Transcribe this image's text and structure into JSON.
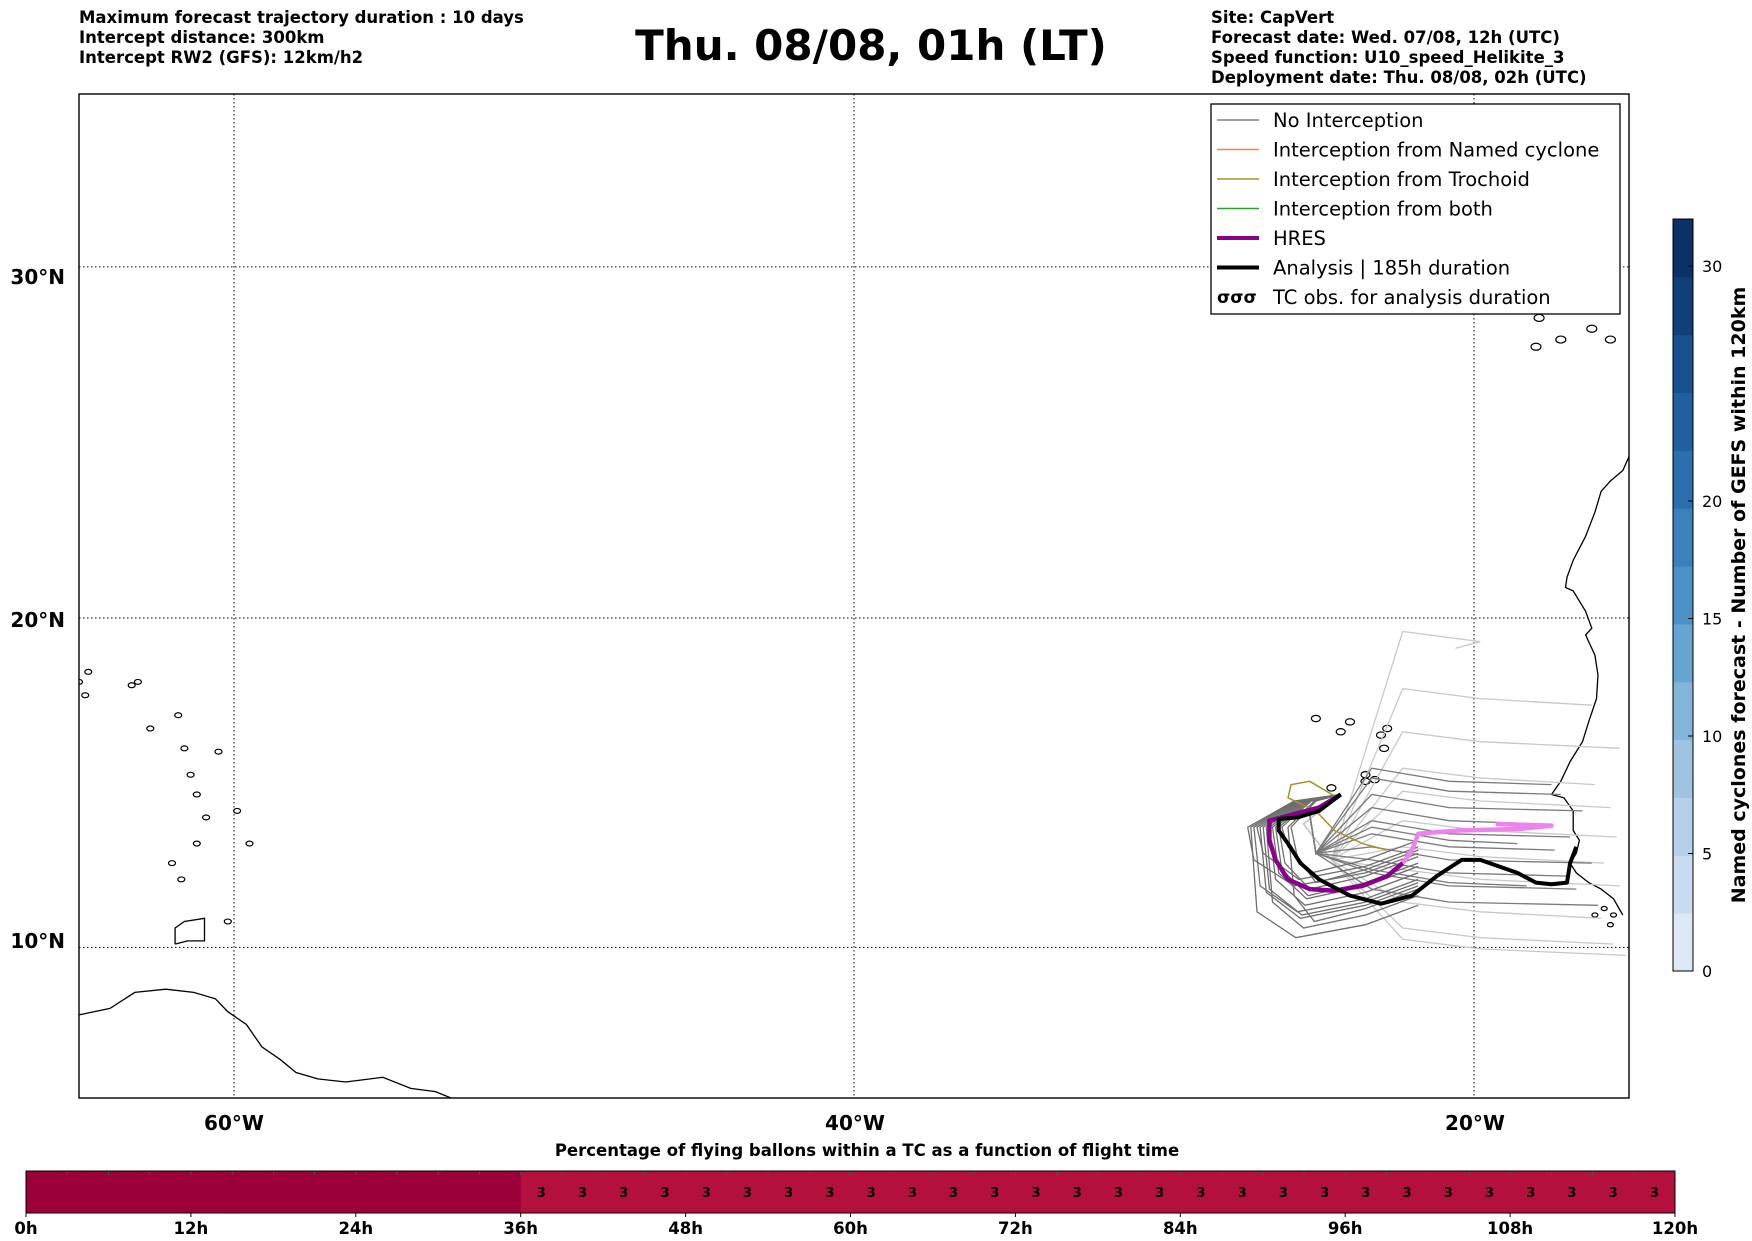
{
  "header": {
    "left": [
      "Maximum forecast trajectory duration : 10 days",
      "Intercept distance: 300km",
      "Intercept RW2 (GFS):  12km/h2"
    ],
    "title": "Thu. 08/08, 01h (LT)",
    "right": [
      "Site: CapVert",
      "Forecast date: Wed. 07/08, 12h (UTC)",
      "Speed function: U10_speed_Helikite_3",
      "Deployment date: Thu. 08/08, 02h (UTC)"
    ]
  },
  "map": {
    "lon_labels": [
      "60°W",
      "40°W",
      "20°W"
    ],
    "lat_labels": [
      "30°N",
      "20°N",
      "10°N"
    ]
  },
  "legend": {
    "items": [
      {
        "label": "No Interception",
        "color": "#808080",
        "kind": "thin"
      },
      {
        "label": "Interception from Named cyclone",
        "color": "#ff7f50",
        "kind": "thin"
      },
      {
        "label": "Interception from Trochoid",
        "color": "#a0942a",
        "kind": "thin"
      },
      {
        "label": "Interception from both",
        "color": "#2ca02c",
        "kind": "thin"
      },
      {
        "label": "HRES",
        "color": "#8b008b",
        "kind": "thick"
      },
      {
        "label": "Analysis | 185h duration",
        "color": "#000000",
        "kind": "thick"
      },
      {
        "label": "TC obs. for analysis duration",
        "color": "#000000",
        "kind": "tc"
      }
    ],
    "tc_symbol": "σσσ"
  },
  "colorbar": {
    "label": "Named cyclones forecast - Number of GEFS within 120km",
    "ticks": [
      "0",
      "5",
      "10",
      "15",
      "20",
      "30"
    ]
  },
  "timebar": {
    "title": "Percentage of flying ballons within a TC as a function of flight time",
    "value_label": "3",
    "ticks": [
      "0h",
      "12h",
      "24h",
      "36h",
      "48h",
      "60h",
      "72h",
      "84h",
      "96h",
      "108h",
      "120h"
    ]
  },
  "chart_data": {
    "type": "map",
    "lon_range": [
      -65,
      -15
    ],
    "lat_range": [
      5.3,
      34.6
    ],
    "grid": true,
    "legend_position": "top-right",
    "colorbar": {
      "vmin": 0,
      "vmax": 32,
      "ticks": [
        0,
        5,
        10,
        15,
        20,
        30
      ],
      "colors": [
        "#dce8f5",
        "#c9dcef",
        "#b5d0e8",
        "#9fc4e2",
        "#83b4d9",
        "#66a4d1",
        "#4a91c7",
        "#3a80bb",
        "#2c6fae",
        "#205fa0",
        "#17508f",
        "#103f7a",
        "#0b3168"
      ]
    },
    "timebar": {
      "hours": [
        0,
        120
      ],
      "segment_hours": 3,
      "values": [
        0,
        0,
        0,
        0,
        0,
        0,
        0,
        0,
        0,
        0,
        0,
        0,
        3,
        3,
        3,
        3,
        3,
        3,
        3,
        3,
        3,
        3,
        3,
        3,
        3,
        3,
        3,
        3,
        3,
        3,
        3,
        3,
        3,
        3,
        3,
        3,
        3,
        3,
        3,
        3
      ],
      "colors": {
        "0": "#9b0039",
        "3": "#b3103d"
      }
    },
    "hres_track": {
      "points": [
        [
          -19.3,
          13.8
        ],
        [
          -17.5,
          13.75
        ],
        [
          -18.5,
          13.65
        ],
        [
          -20.5,
          13.6
        ],
        [
          -21.8,
          13.5
        ],
        [
          -22.0,
          13.0
        ],
        [
          -22.3,
          12.6
        ],
        [
          -22.8,
          12.2
        ],
        [
          -23.6,
          11.9
        ],
        [
          -24.5,
          11.75
        ],
        [
          -25.3,
          11.8
        ],
        [
          -26.0,
          12.1
        ],
        [
          -26.4,
          12.7
        ],
        [
          -26.6,
          13.3
        ],
        [
          -26.6,
          13.9
        ],
        [
          -25.8,
          14.1
        ],
        [
          -25.0,
          14.3
        ],
        [
          -24.3,
          14.7
        ]
      ],
      "colors": [
        "#ee82ee",
        "#8b008b"
      ]
    },
    "analysis_track": {
      "points": [
        [
          -24.3,
          14.7
        ],
        [
          -25.0,
          14.2
        ],
        [
          -25.7,
          14.0
        ],
        [
          -26.3,
          13.95
        ],
        [
          -26.3,
          13.6
        ],
        [
          -26.0,
          13.2
        ],
        [
          -25.6,
          12.6
        ],
        [
          -25.0,
          12.1
        ],
        [
          -24.0,
          11.6
        ],
        [
          -23.0,
          11.35
        ],
        [
          -22.0,
          11.6
        ],
        [
          -21.2,
          12.2
        ],
        [
          -20.4,
          12.7
        ],
        [
          -19.8,
          12.7
        ],
        [
          -19.2,
          12.5
        ],
        [
          -18.6,
          12.3
        ],
        [
          -18.0,
          12.0
        ],
        [
          -17.5,
          11.95
        ],
        [
          -17.0,
          12.0
        ],
        [
          -16.9,
          12.6
        ],
        [
          -16.7,
          13.1
        ]
      ],
      "color": "#000000"
    },
    "trochoid_track": {
      "points": [
        [
          -24.4,
          14.6
        ],
        [
          -25.3,
          15.1
        ],
        [
          -25.9,
          15.0
        ],
        [
          -26.0,
          14.6
        ],
        [
          -25.1,
          14.2
        ],
        [
          -24.5,
          13.6
        ],
        [
          -23.6,
          13.2
        ],
        [
          -22.8,
          13.0
        ]
      ],
      "color": "#a0942a"
    },
    "ensemble": {
      "origin": [
        -24.3,
        14.7
      ],
      "west": [
        {
          "far": -26.3,
          "south": 11.8
        },
        {
          "far": -26.6,
          "south": 11.3
        },
        {
          "far": -26.9,
          "south": 10.9
        },
        {
          "far": -27.2,
          "south": 10.3
        },
        {
          "far": -26.8,
          "south": 11.0
        },
        {
          "far": -26.5,
          "south": 11.5
        },
        {
          "far": -27.0,
          "south": 12.1
        },
        {
          "far": -26.2,
          "south": 12.3
        },
        {
          "far": -26.7,
          "south": 10.6
        },
        {
          "far": -27.1,
          "south": 11.1
        },
        {
          "far": -25.9,
          "south": 12.0
        },
        {
          "far": -26.4,
          "south": 11.6
        },
        {
          "far": -27.3,
          "south": 11.9
        },
        {
          "far": -26.0,
          "south": 10.8
        }
      ],
      "east": [
        {
          "lat": 14.8,
          "lon_end": -17.2
        },
        {
          "lat": 14.3,
          "lon_end": -16.5
        },
        {
          "lat": 13.9,
          "lon_end": -17.8
        },
        {
          "lat": 13.5,
          "lon_end": -16.9
        },
        {
          "lat": 13.1,
          "lon_end": -17.4
        },
        {
          "lat": 12.7,
          "lon_end": -16.2
        },
        {
          "lat": 12.3,
          "lon_end": -17.0
        },
        {
          "lat": 11.9,
          "lon_end": -16.7
        },
        {
          "lat": 11.4,
          "lon_end": -16.0
        },
        {
          "lat": 15.1,
          "lon_end": -17.5
        },
        {
          "lat": 12.0,
          "lon_end": -18.3
        },
        {
          "lat": 13.3,
          "lon_end": -18.6
        }
      ],
      "light": [
        {
          "lat": 14.5,
          "lon_end": -15.6
        },
        {
          "lat": 13.6,
          "lon_end": -15.4
        },
        {
          "lat": 12.8,
          "lon_end": -15.8
        },
        {
          "lat": 12.1,
          "lon_end": -15.3
        },
        {
          "lat": 11.1,
          "lon_end": -15.9
        },
        {
          "lat": 10.3,
          "lon_end": -15.5
        },
        {
          "lat": 9.95,
          "lon_end": -15.1
        },
        {
          "lat": 15.2,
          "lon_end": -16.1
        },
        {
          "lat": 16.3,
          "lon_end": -15.3
        },
        {
          "lat": 17.6,
          "lon_end": -16.2
        },
        {
          "lat": 19.3,
          "lon_end": -20.6
        }
      ]
    },
    "coastlines": {
      "africa": [
        [
          -15,
          24.7
        ],
        [
          -15.2,
          24.3
        ],
        [
          -15.6,
          24.0
        ],
        [
          -15.9,
          23.7
        ],
        [
          -16.1,
          23.1
        ],
        [
          -16.4,
          22.4
        ],
        [
          -16.8,
          21.7
        ],
        [
          -17.0,
          21.2
        ],
        [
          -17.05,
          20.9
        ],
        [
          -16.8,
          20.8
        ],
        [
          -16.4,
          20.2
        ],
        [
          -16.2,
          19.7
        ],
        [
          -16.4,
          19.5
        ],
        [
          -16.1,
          18.9
        ],
        [
          -16.0,
          18.3
        ],
        [
          -16.05,
          17.6
        ],
        [
          -16.3,
          16.9
        ],
        [
          -16.5,
          16.3
        ],
        [
          -16.9,
          15.7
        ],
        [
          -17.2,
          15.1
        ],
        [
          -17.5,
          14.7
        ],
        [
          -17.1,
          14.6
        ],
        [
          -16.8,
          14.2
        ],
        [
          -16.8,
          13.6
        ],
        [
          -16.6,
          13.3
        ],
        [
          -16.7,
          12.9
        ],
        [
          -16.9,
          12.6
        ],
        [
          -16.7,
          12.3
        ],
        [
          -16.3,
          12.0
        ],
        [
          -15.9,
          11.8
        ],
        [
          -15.5,
          11.5
        ],
        [
          -15.2,
          11.0
        ]
      ],
      "south_america": [
        [
          -65,
          7.9
        ],
        [
          -64.0,
          8.1
        ],
        [
          -63.2,
          8.6
        ],
        [
          -62.2,
          8.7
        ],
        [
          -61.3,
          8.6
        ],
        [
          -60.6,
          8.4
        ],
        [
          -60.2,
          8.0
        ],
        [
          -59.6,
          7.6
        ],
        [
          -59.1,
          6.9
        ],
        [
          -58.5,
          6.5
        ],
        [
          -58.0,
          6.1
        ],
        [
          -57.3,
          5.9
        ],
        [
          -56.4,
          5.8
        ],
        [
          -55.2,
          5.95
        ],
        [
          -54.3,
          5.6
        ],
        [
          -53.5,
          5.5
        ],
        [
          -53.0,
          5.3
        ]
      ],
      "trinidad": [
        [
          -61.9,
          10.1
        ],
        [
          -61.5,
          10.2
        ],
        [
          -60.95,
          10.2
        ],
        [
          -60.95,
          10.9
        ],
        [
          -61.6,
          10.8
        ],
        [
          -61.9,
          10.6
        ],
        [
          -61.9,
          10.1
        ]
      ],
      "islands": [
        [
          -60.2,
          10.8
        ],
        [
          -59.9,
          14.2
        ],
        [
          -60.9,
          14.0
        ],
        [
          -61.2,
          14.7
        ],
        [
          -61.4,
          15.3
        ],
        [
          -61.6,
          16.1
        ],
        [
          -62.7,
          16.7
        ],
        [
          -63.1,
          18.1
        ],
        [
          -61.8,
          17.1
        ],
        [
          -63.3,
          18.0
        ],
        [
          -64.7,
          18.4
        ],
        [
          -59.5,
          13.2
        ],
        [
          -61.2,
          13.2
        ],
        [
          -61.7,
          12.1
        ],
        [
          -62.0,
          12.6
        ],
        [
          -64.8,
          17.7
        ],
        [
          -65.0,
          18.1
        ],
        [
          -60.5,
          16.0
        ]
      ],
      "capverde": [
        [
          -25.1,
          17.0
        ],
        [
          -24.3,
          16.6
        ],
        [
          -23.0,
          16.5
        ],
        [
          -22.9,
          16.1
        ],
        [
          -23.5,
          15.1
        ],
        [
          -24.6,
          14.9
        ],
        [
          -23.2,
          15.15
        ],
        [
          -22.8,
          16.7
        ],
        [
          -24.0,
          16.9
        ],
        [
          -23.5,
          15.3
        ]
      ],
      "canary": [
        [
          -17.9,
          28.6
        ],
        [
          -17.2,
          28.0
        ],
        [
          -16.2,
          28.3
        ],
        [
          -15.6,
          28.0
        ],
        [
          -14.0,
          28.4
        ],
        [
          -13.6,
          29.0
        ],
        [
          -18.0,
          27.8
        ]
      ],
      "guinea_islands": [
        [
          -16.1,
          11.0
        ],
        [
          -15.8,
          11.2
        ],
        [
          -15.5,
          11.0
        ],
        [
          -15.6,
          10.7
        ]
      ]
    }
  }
}
